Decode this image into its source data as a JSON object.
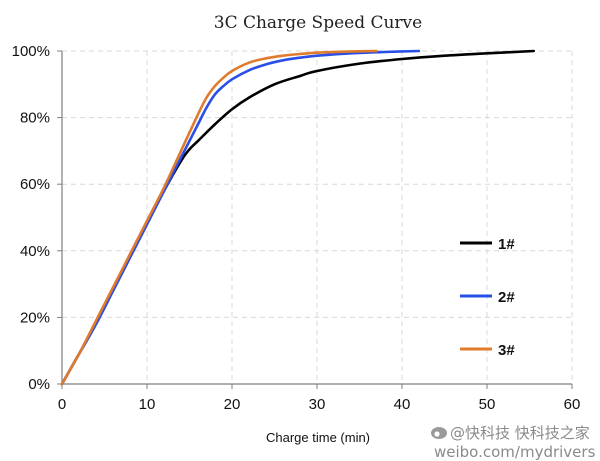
{
  "chart_data": {
    "type": "line",
    "title": "3C Charge Speed Curve",
    "xlabel": "Charge time (min)",
    "ylabel": "",
    "xlim": [
      0,
      60
    ],
    "ylim": [
      0,
      100
    ],
    "x_ticks": [
      "0",
      "10",
      "20",
      "30",
      "40",
      "50",
      "60"
    ],
    "y_ticks": [
      "0%",
      "20%",
      "40%",
      "60%",
      "80%",
      "100%"
    ],
    "grid": true,
    "legend_position": "right",
    "series": [
      {
        "name": "1#",
        "color": "#000000",
        "x": [
          0,
          2,
          4,
          6,
          8,
          10,
          12,
          14,
          15,
          16,
          18,
          20,
          22,
          25,
          28,
          30,
          35,
          40,
          45,
          50,
          55.5
        ],
        "y": [
          0,
          9,
          18,
          28,
          38,
          48,
          58,
          67,
          70.5,
          73,
          78,
          82.5,
          86,
          90,
          92.5,
          94,
          96.2,
          97.6,
          98.6,
          99.3,
          100
        ]
      },
      {
        "name": "2#",
        "color": "#2a4fe6",
        "x": [
          0,
          2,
          4,
          6,
          8,
          10,
          12,
          14,
          16,
          17,
          18,
          19,
          20,
          22,
          24,
          26,
          28,
          30,
          34,
          38,
          42
        ],
        "y": [
          0,
          9,
          18,
          28,
          38,
          48,
          58,
          68,
          78,
          83,
          87,
          89.5,
          91.5,
          94.2,
          96,
          97.2,
          98,
          98.6,
          99.3,
          99.7,
          100
        ]
      },
      {
        "name": "3#",
        "color": "#e07b2e",
        "x": [
          0,
          2,
          4,
          6,
          8,
          10,
          12,
          14,
          16,
          17,
          18,
          19,
          20,
          22,
          24,
          26,
          28,
          30,
          33,
          37
        ],
        "y": [
          0,
          9,
          19,
          29,
          39,
          49,
          59,
          70,
          81,
          86,
          89.5,
          92,
          94,
          96.5,
          97.8,
          98.6,
          99.1,
          99.5,
          99.8,
          100
        ]
      }
    ]
  },
  "watermark": {
    "line1": "@快科技 快科技之家",
    "line2": "weibo.com/mydrivers"
  },
  "colors": {
    "axis": "#7f7f7f",
    "grid": "#d9d9d9"
  }
}
